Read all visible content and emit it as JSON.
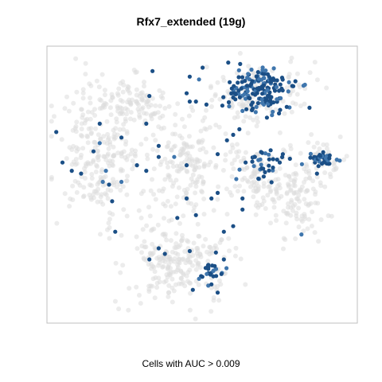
{
  "chart_data": {
    "type": "scatter",
    "title": "Rfx7_extended (19g)",
    "xlabel": "Cells with AUC > 0.009",
    "ylabel": "",
    "grid": false,
    "axes_ticks": false,
    "colors": {
      "background_cells": "#dcdcdc",
      "high_auc_cells": "#1b4f86",
      "mid_auc_cells": "#3f76ad",
      "frame": "#bfbfbf"
    },
    "background_clusters": [
      {
        "name": "left",
        "cx": 0.17,
        "cy": 0.62,
        "rx": 0.13,
        "ry": 0.22,
        "n": 260
      },
      {
        "name": "upper-left",
        "cx": 0.28,
        "cy": 0.79,
        "rx": 0.1,
        "ry": 0.08,
        "n": 90
      },
      {
        "name": "center",
        "cx": 0.45,
        "cy": 0.57,
        "rx": 0.1,
        "ry": 0.16,
        "n": 160
      },
      {
        "name": "lower-center",
        "cx": 0.42,
        "cy": 0.22,
        "rx": 0.16,
        "ry": 0.13,
        "n": 230
      },
      {
        "name": "top-right",
        "cx": 0.66,
        "cy": 0.82,
        "rx": 0.15,
        "ry": 0.11,
        "n": 140
      },
      {
        "name": "center-right",
        "cx": 0.67,
        "cy": 0.53,
        "rx": 0.1,
        "ry": 0.14,
        "n": 110
      },
      {
        "name": "right",
        "cx": 0.82,
        "cy": 0.45,
        "rx": 0.08,
        "ry": 0.13,
        "n": 110
      },
      {
        "name": "far-right",
        "cx": 0.89,
        "cy": 0.6,
        "rx": 0.06,
        "ry": 0.05,
        "n": 40
      }
    ],
    "highlighted_clusters": [
      {
        "name": "top-right",
        "cx": 0.69,
        "cy": 0.84,
        "rx": 0.11,
        "ry": 0.08,
        "n": 160
      },
      {
        "name": "far-right",
        "cx": 0.89,
        "cy": 0.59,
        "rx": 0.05,
        "ry": 0.025,
        "n": 38
      },
      {
        "name": "lower-center",
        "cx": 0.53,
        "cy": 0.19,
        "rx": 0.04,
        "ry": 0.04,
        "n": 22
      },
      {
        "name": "center-right",
        "cx": 0.7,
        "cy": 0.56,
        "rx": 0.06,
        "ry": 0.07,
        "n": 30
      }
    ],
    "highlighted_points": [
      [
        0.34,
        0.91
      ],
      [
        0.46,
        0.89
      ],
      [
        0.49,
        0.88
      ],
      [
        0.33,
        0.82
      ],
      [
        0.45,
        0.83
      ],
      [
        0.48,
        0.8
      ],
      [
        0.46,
        0.8
      ],
      [
        0.32,
        0.72
      ],
      [
        0.17,
        0.72
      ],
      [
        0.03,
        0.69
      ],
      [
        0.17,
        0.65
      ],
      [
        0.24,
        0.67
      ],
      [
        0.08,
        0.55
      ],
      [
        0.15,
        0.62
      ],
      [
        0.19,
        0.55
      ],
      [
        0.11,
        0.54
      ],
      [
        0.18,
        0.51
      ],
      [
        0.2,
        0.5
      ],
      [
        0.05,
        0.58
      ],
      [
        0.21,
        0.44
      ],
      [
        0.24,
        0.51
      ],
      [
        0.36,
        0.6
      ],
      [
        0.36,
        0.64
      ],
      [
        0.29,
        0.57
      ],
      [
        0.32,
        0.55
      ],
      [
        0.41,
        0.6
      ],
      [
        0.55,
        0.61
      ],
      [
        0.58,
        0.66
      ],
      [
        0.6,
        0.68
      ],
      [
        0.62,
        0.7
      ],
      [
        0.45,
        0.57
      ],
      [
        0.45,
        0.45
      ],
      [
        0.42,
        0.38
      ],
      [
        0.48,
        0.39
      ],
      [
        0.55,
        0.47
      ],
      [
        0.53,
        0.45
      ],
      [
        0.61,
        0.52
      ],
      [
        0.63,
        0.45
      ],
      [
        0.64,
        0.58
      ],
      [
        0.67,
        0.6
      ],
      [
        0.75,
        0.58
      ],
      [
        0.76,
        0.61
      ],
      [
        0.63,
        0.41
      ],
      [
        0.6,
        0.35
      ],
      [
        0.57,
        0.33
      ],
      [
        0.22,
        0.33
      ],
      [
        0.36,
        0.27
      ],
      [
        0.33,
        0.23
      ],
      [
        0.38,
        0.25
      ],
      [
        0.49,
        0.16
      ],
      [
        0.53,
        0.14
      ],
      [
        0.47,
        0.12
      ],
      [
        0.55,
        0.11
      ],
      [
        0.52,
        0.21
      ],
      [
        0.57,
        0.23
      ],
      [
        0.46,
        0.26
      ],
      [
        0.82,
        0.32
      ],
      [
        0.87,
        0.54
      ]
    ]
  }
}
